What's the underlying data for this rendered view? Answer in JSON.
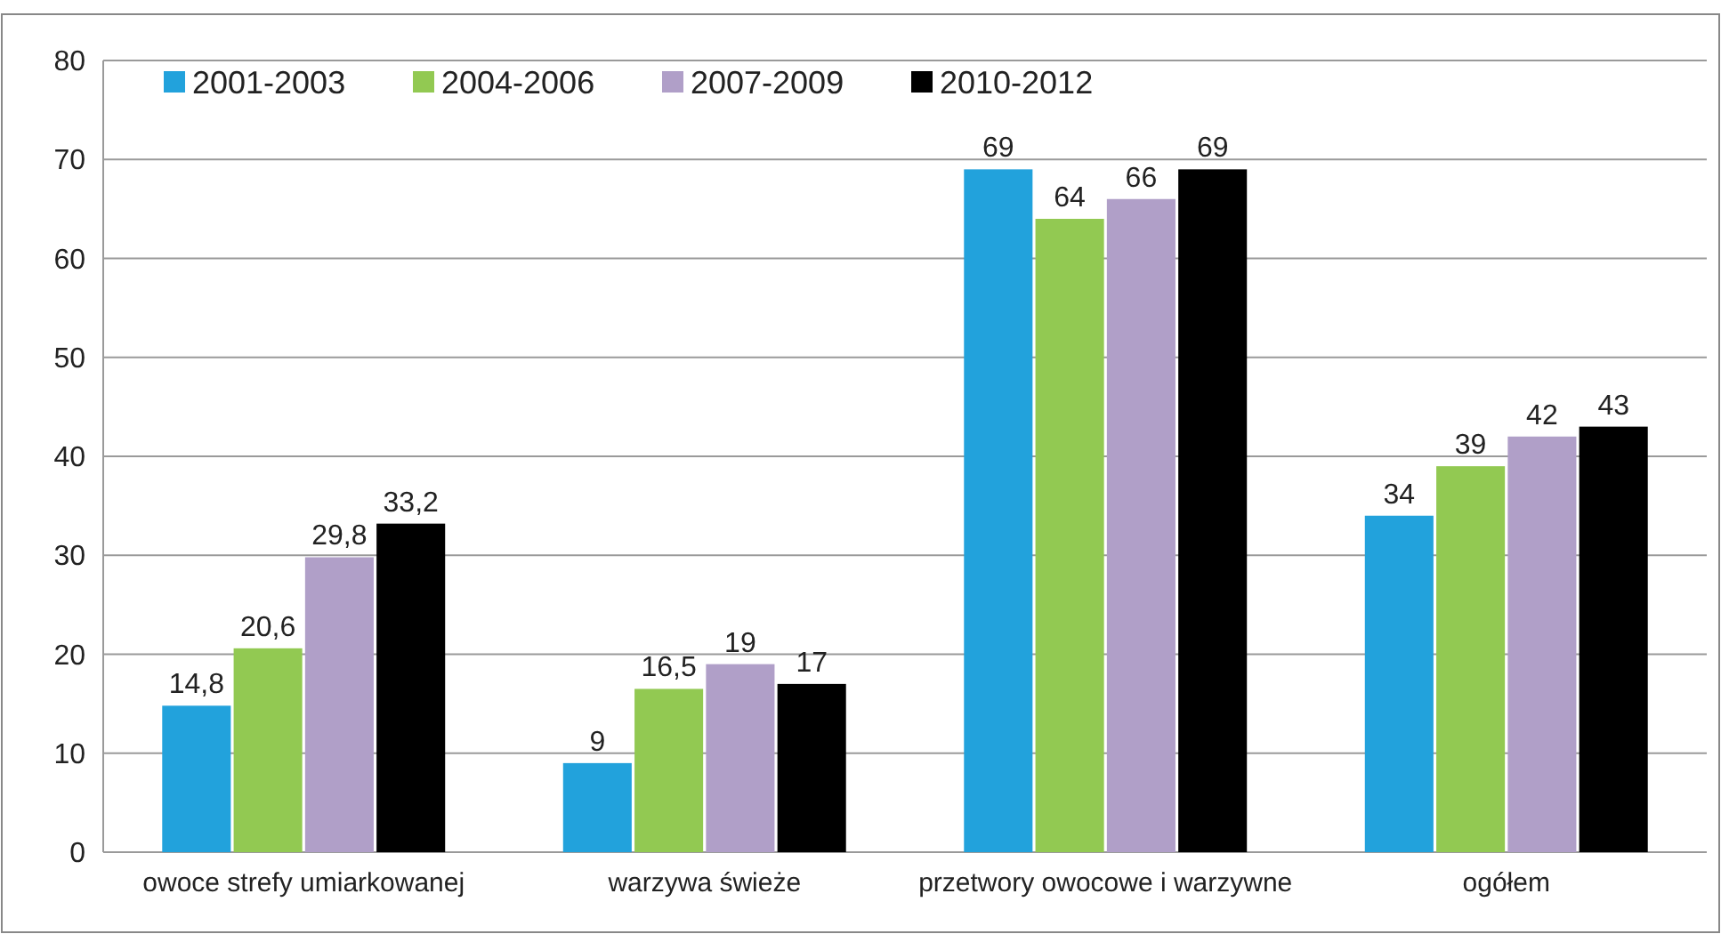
{
  "chart_data": {
    "type": "bar",
    "categories": [
      "owoce strefy umiarkowanej",
      "warzywa świeże",
      "przetwory owocowe i warzywne",
      "ogółem"
    ],
    "series": [
      {
        "name": "2001-2003",
        "color": "#22a2dc",
        "values": [
          14.8,
          9,
          69,
          34
        ],
        "value_labels": [
          "14,8",
          "9",
          "69",
          "34"
        ]
      },
      {
        "name": "2004-2006",
        "color": "#92c952",
        "values": [
          20.6,
          16.5,
          64,
          39
        ],
        "value_labels": [
          "20,6",
          "16,5",
          "64",
          "39"
        ]
      },
      {
        "name": "2007-2009",
        "color": "#b09fc8",
        "values": [
          29.8,
          19,
          66,
          42
        ],
        "value_labels": [
          "29,8",
          "19",
          "66",
          "42"
        ]
      },
      {
        "name": "2010-2012",
        "color": "#000000",
        "values": [
          33.2,
          17,
          69,
          43
        ],
        "value_labels": [
          "33,2",
          "17",
          "69",
          "43"
        ]
      }
    ],
    "ylim": [
      0,
      80
    ],
    "yticks": [
      0,
      10,
      20,
      30,
      40,
      50,
      60,
      70,
      80
    ],
    "grid": "y",
    "legend": "top left"
  }
}
